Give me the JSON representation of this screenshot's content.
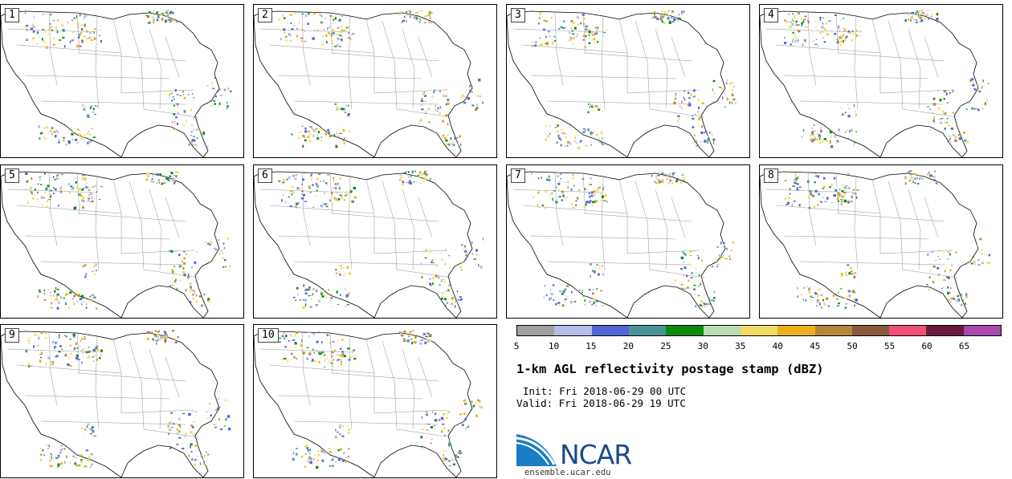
{
  "panels": [
    {
      "label": "1"
    },
    {
      "label": "2"
    },
    {
      "label": "3"
    },
    {
      "label": "4"
    },
    {
      "label": "5"
    },
    {
      "label": "6"
    },
    {
      "label": "7"
    },
    {
      "label": "8"
    },
    {
      "label": "9"
    },
    {
      "label": "10"
    }
  ],
  "legend": {
    "ticks": [
      "5",
      "10",
      "15",
      "20",
      "25",
      "30",
      "35",
      "40",
      "45",
      "50",
      "55",
      "60",
      "65"
    ],
    "colors": [
      "#a0a0a0",
      "#b4bee8",
      "#5565d6",
      "#4a9498",
      "#0e8a0e",
      "#b8dcb4",
      "#f0dc64",
      "#ecb01c",
      "#b4883c",
      "#8a5a3c",
      "#f05078",
      "#6a1a3c",
      "#a84aaa"
    ]
  },
  "title": "1-km AGL reflectivity postage stamp (dBZ)",
  "init": "Init: Fri 2018-06-29 00 UTC",
  "valid": "Valid: Fri 2018-06-29 19 UTC",
  "logo": {
    "text": "NCAR",
    "color": "#1b4b84"
  },
  "url": "ensemble.ucar.edu"
}
